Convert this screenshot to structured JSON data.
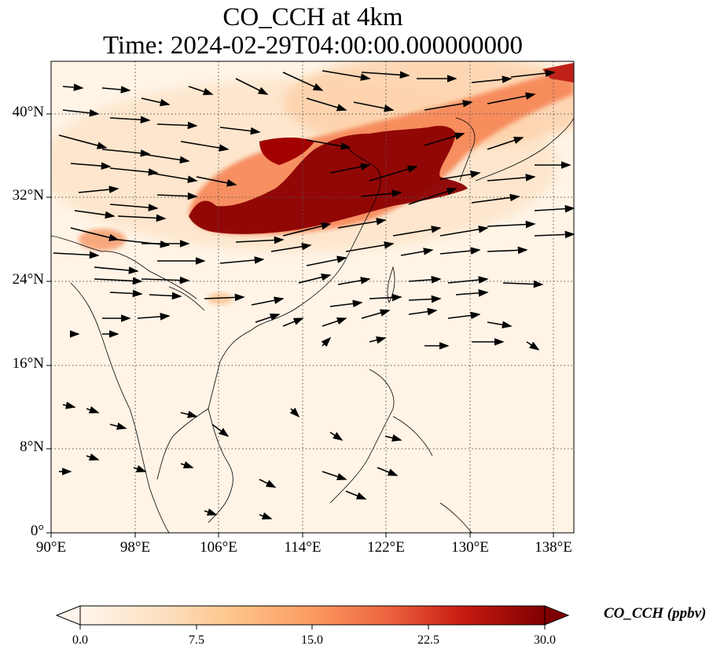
{
  "title": {
    "line1": "CO_CCH at 4km",
    "line2": "Time: 2024-02-29T04:00:00.000000000"
  },
  "map": {
    "lon_range": [
      90,
      140
    ],
    "lat_range": [
      0,
      45
    ],
    "x_ticks": [
      "90°E",
      "98°E",
      "106°E",
      "114°E",
      "122°E",
      "130°E",
      "138°E"
    ],
    "y_ticks": [
      "0°",
      "8°N",
      "16°N",
      "24°N",
      "32°N",
      "40°N"
    ],
    "gridlines": true
  },
  "colorbar": {
    "label": "CO_CCH (ppbv)",
    "ticks": [
      "0.0",
      "7.5",
      "15.0",
      "22.5",
      "30.0"
    ],
    "range": [
      0,
      30
    ],
    "extend": "both",
    "colors": [
      "#fff5eb",
      "#fdd49e",
      "#fdbb84",
      "#fc8d59",
      "#ef6548",
      "#d7301f",
      "#990000",
      "#7f0000"
    ]
  }
}
